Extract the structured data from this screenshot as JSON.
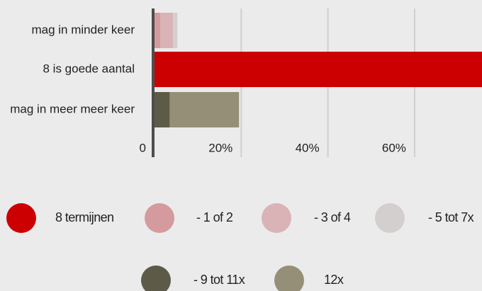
{
  "chart_data": {
    "type": "stacked_bar_horizontal",
    "categories": [
      "mag in minder keer",
      "8 is goede aantal",
      "mag in meer meer keer"
    ],
    "series": [
      {
        "name": "8 termijnen",
        "color": "#cc0000",
        "values": [
          0,
          76,
          0
        ]
      },
      {
        "name": "- 1 of 2",
        "color": "#d49a9d",
        "values": [
          1.3,
          0,
          0
        ]
      },
      {
        "name": "- 3 of 4",
        "color": "#d9b3b6",
        "values": [
          3,
          0,
          0
        ]
      },
      {
        "name": "- 5 tot 7x",
        "color": "#d4cfcf",
        "values": [
          1,
          0,
          0
        ]
      },
      {
        "name": "- 9 tot 11x",
        "color": "#5d5a48",
        "values": [
          0,
          0,
          3.5
        ]
      },
      {
        "name": "12x",
        "color": "#968f78",
        "values": [
          0,
          0,
          16
        ]
      }
    ],
    "xlim": [
      0,
      76
    ],
    "xticks": [
      0,
      {
        "value": 20,
        "label": "20%"
      },
      {
        "value": 40,
        "label": "40%"
      },
      {
        "value": 60,
        "label": "60%"
      }
    ],
    "grid": true
  }
}
